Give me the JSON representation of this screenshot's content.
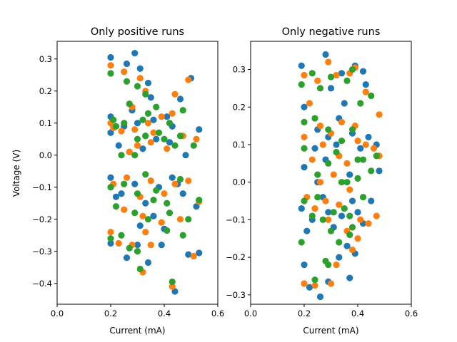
{
  "chart_data": [
    {
      "type": "scatter",
      "title": "Only positive runs",
      "xlabel": "Current (mA)",
      "ylabel": "Voltage (V)",
      "xlim": [
        0,
        0.6
      ],
      "ylim": [
        -0.465,
        0.355
      ],
      "xticks": [
        "0.0",
        "0.2",
        "0.4",
        "0.6"
      ],
      "xtick_values": [
        0,
        0.2,
        0.4,
        0.6
      ],
      "yticks": [
        "−0.4",
        "−0.3",
        "−0.2",
        "−0.1",
        "0.0",
        "0.1",
        "0.2",
        "0.3"
      ],
      "ytick_values": [
        -0.4,
        -0.3,
        -0.2,
        -0.1,
        0.0,
        0.1,
        0.2,
        0.3
      ],
      "grid": false,
      "series_colors": [
        "#1f77b4",
        "#ff7f0e",
        "#2ca02c"
      ],
      "series": [
        {
          "values": [
            [
              0.2,
              0.305
            ],
            [
              0.26,
              0.285
            ],
            [
              0.29,
              0.318
            ],
            [
              0.31,
              0.27
            ],
            [
              0.34,
              0.225
            ],
            [
              0.2,
              0.12
            ],
            [
              0.25,
              0.09
            ],
            [
              0.3,
              0.1
            ],
            [
              0.33,
              0.06
            ],
            [
              0.37,
              0.05
            ],
            [
              0.41,
              0.12
            ],
            [
              0.46,
              0.175
            ],
            [
              0.5,
              0.24
            ],
            [
              0.53,
              0.08
            ],
            [
              0.2,
              0.07
            ],
            [
              0.27,
              0.01
            ],
            [
              0.32,
              0.02
            ],
            [
              0.36,
              0.11
            ],
            [
              0.42,
              0.04
            ],
            [
              0.48,
              0.0
            ],
            [
              0.2,
              -0.07
            ],
            [
              0.24,
              -0.12
            ],
            [
              0.29,
              -0.09
            ],
            [
              0.33,
              -0.15
            ],
            [
              0.38,
              -0.1
            ],
            [
              0.43,
              -0.07
            ],
            [
              0.47,
              -0.12
            ],
            [
              0.52,
              -0.16
            ],
            [
              0.2,
              -0.275
            ],
            [
              0.26,
              -0.32
            ],
            [
              0.3,
              -0.28
            ],
            [
              0.34,
              -0.335
            ],
            [
              0.39,
              -0.28
            ],
            [
              0.44,
              -0.425
            ],
            [
              0.49,
              -0.31
            ],
            [
              0.22,
              -0.13
            ],
            [
              0.31,
              -0.22
            ],
            [
              0.36,
              -0.19
            ],
            [
              0.4,
              -0.23
            ],
            [
              0.45,
              -0.09
            ],
            [
              0.53,
              -0.305
            ],
            [
              0.23,
              0.03
            ],
            [
              0.28,
              0.14
            ],
            [
              0.35,
              0.18
            ],
            [
              0.43,
              0.09
            ]
          ]
        },
        {
          "values": [
            [
              0.2,
              0.28
            ],
            [
              0.25,
              0.26
            ],
            [
              0.31,
              0.24
            ],
            [
              0.33,
              0.2
            ],
            [
              0.28,
              0.15
            ],
            [
              0.2,
              0.1
            ],
            [
              0.24,
              0.075
            ],
            [
              0.29,
              0.08
            ],
            [
              0.35,
              0.04
            ],
            [
              0.39,
              0.12
            ],
            [
              0.44,
              0.19
            ],
            [
              0.49,
              0.235
            ],
            [
              0.52,
              0.05
            ],
            [
              0.21,
              0.085
            ],
            [
              0.3,
              0.03
            ],
            [
              0.34,
              0.1
            ],
            [
              0.41,
              0.02
            ],
            [
              0.47,
              0.06
            ],
            [
              0.21,
              -0.09
            ],
            [
              0.26,
              -0.07
            ],
            [
              0.31,
              -0.13
            ],
            [
              0.35,
              -0.08
            ],
            [
              0.4,
              -0.12
            ],
            [
              0.44,
              -0.09
            ],
            [
              0.49,
              -0.08
            ],
            [
              0.53,
              -0.145
            ],
            [
              0.2,
              -0.24
            ],
            [
              0.23,
              -0.275
            ],
            [
              0.28,
              -0.28
            ],
            [
              0.33,
              -0.24
            ],
            [
              0.35,
              -0.28
            ],
            [
              0.43,
              -0.41
            ],
            [
              0.51,
              -0.315
            ],
            [
              0.25,
              -0.17
            ],
            [
              0.32,
              -0.19
            ],
            [
              0.39,
              -0.21
            ],
            [
              0.46,
              -0.2
            ],
            [
              0.32,
              -0.365
            ],
            [
              0.27,
              0.01
            ],
            [
              0.36,
              0.07
            ],
            [
              0.43,
              0.13
            ]
          ]
        },
        {
          "values": [
            [
              0.2,
              0.255
            ],
            [
              0.26,
              0.23
            ],
            [
              0.3,
              0.215
            ],
            [
              0.33,
              0.19
            ],
            [
              0.27,
              0.16
            ],
            [
              0.21,
              0.11
            ],
            [
              0.25,
              0.1
            ],
            [
              0.3,
              0.05
            ],
            [
              0.34,
              0.13
            ],
            [
              0.38,
              0.07
            ],
            [
              0.42,
              0.1
            ],
            [
              0.47,
              0.14
            ],
            [
              0.51,
              0.03
            ],
            [
              0.22,
              0.09
            ],
            [
              0.29,
              0.0
            ],
            [
              0.33,
              0.06
            ],
            [
              0.4,
              0.05
            ],
            [
              0.46,
              0.06
            ],
            [
              0.2,
              -0.1
            ],
            [
              0.25,
              -0.09
            ],
            [
              0.3,
              -0.12
            ],
            [
              0.33,
              -0.06
            ],
            [
              0.37,
              -0.11
            ],
            [
              0.41,
              -0.15
            ],
            [
              0.46,
              -0.075
            ],
            [
              0.53,
              -0.14
            ],
            [
              0.2,
              -0.26
            ],
            [
              0.24,
              -0.25
            ],
            [
              0.27,
              -0.29
            ],
            [
              0.3,
              -0.3
            ],
            [
              0.34,
              -0.2
            ],
            [
              0.41,
              -0.235
            ],
            [
              0.43,
              -0.395
            ],
            [
              0.47,
              -0.25
            ],
            [
              0.22,
              -0.16
            ],
            [
              0.29,
              -0.18
            ],
            [
              0.36,
              -0.14
            ],
            [
              0.42,
              -0.18
            ],
            [
              0.49,
              -0.2
            ],
            [
              0.31,
              -0.355
            ],
            [
              0.24,
              0.0
            ],
            [
              0.32,
              0.11
            ],
            [
              0.37,
              0.15
            ],
            [
              0.44,
              0.03
            ]
          ]
        }
      ]
    },
    {
      "type": "scatter",
      "title": "Only negative runs",
      "xlabel": "Current (mA)",
      "ylabel": "",
      "xlim": [
        0,
        0.6
      ],
      "ylim": [
        -0.325,
        0.375
      ],
      "xticks": [
        "0.0",
        "0.2",
        "0.4",
        "0.6"
      ],
      "xtick_values": [
        0,
        0.2,
        0.4,
        0.6
      ],
      "yticks": [
        "−0.3",
        "−0.2",
        "−0.1",
        "0.0",
        "0.1",
        "0.2",
        "0.3"
      ],
      "ytick_values": [
        -0.3,
        -0.2,
        -0.1,
        0.0,
        0.1,
        0.2,
        0.3
      ],
      "grid": false,
      "series_colors": [
        "#1f77b4",
        "#ff7f0e",
        "#2ca02c"
      ],
      "series": [
        {
          "values": [
            [
              0.19,
              0.31
            ],
            [
              0.28,
              0.34
            ],
            [
              0.34,
              0.29
            ],
            [
              0.39,
              0.31
            ],
            [
              0.42,
              0.295
            ],
            [
              0.2,
              0.2
            ],
            [
              0.25,
              0.14
            ],
            [
              0.29,
              0.12
            ],
            [
              0.33,
              0.17
            ],
            [
              0.38,
              0.13
            ],
            [
              0.44,
              0.12
            ],
            [
              0.47,
              0.1
            ],
            [
              0.2,
              0.04
            ],
            [
              0.24,
              0.09
            ],
            [
              0.28,
              0.06
            ],
            [
              0.32,
              0.1
            ],
            [
              0.37,
              0.02
            ],
            [
              0.41,
              0.09
            ],
            [
              0.48,
              0.03
            ],
            [
              0.19,
              -0.07
            ],
            [
              0.23,
              -0.1
            ],
            [
              0.27,
              -0.04
            ],
            [
              0.31,
              -0.12
            ],
            [
              0.34,
              -0.09
            ],
            [
              0.38,
              -0.05
            ],
            [
              0.42,
              -0.11
            ],
            [
              0.45,
              -0.05
            ],
            [
              0.2,
              -0.22
            ],
            [
              0.22,
              -0.28
            ],
            [
              0.26,
              -0.305
            ],
            [
              0.29,
              -0.265
            ],
            [
              0.33,
              -0.2
            ],
            [
              0.36,
              -0.17
            ],
            [
              0.39,
              -0.19
            ],
            [
              0.37,
              -0.255
            ],
            [
              0.21,
              -0.13
            ],
            [
              0.25,
              0.0
            ],
            [
              0.3,
              0.25
            ],
            [
              0.35,
              0.21
            ],
            [
              0.43,
              0.26
            ],
            [
              0.29,
              -0.08
            ],
            [
              0.4,
              -0.08
            ]
          ]
        },
        {
          "values": [
            [
              0.2,
              0.285
            ],
            [
              0.29,
              0.32
            ],
            [
              0.32,
              0.285
            ],
            [
              0.37,
              0.29
            ],
            [
              0.39,
              0.305
            ],
            [
              0.22,
              0.21
            ],
            [
              0.26,
              0.15
            ],
            [
              0.3,
              0.13
            ],
            [
              0.34,
              0.16
            ],
            [
              0.39,
              0.15
            ],
            [
              0.43,
              0.1
            ],
            [
              0.48,
              0.07
            ],
            [
              0.2,
              0.12
            ],
            [
              0.23,
              0.06
            ],
            [
              0.27,
              0.1
            ],
            [
              0.33,
              0.07
            ],
            [
              0.36,
              0.05
            ],
            [
              0.4,
              0.11
            ],
            [
              0.46,
              0.09
            ],
            [
              0.21,
              -0.04
            ],
            [
              0.24,
              -0.07
            ],
            [
              0.28,
              -0.05
            ],
            [
              0.33,
              -0.06
            ],
            [
              0.37,
              -0.02
            ],
            [
              0.41,
              -0.1
            ],
            [
              0.47,
              -0.09
            ],
            [
              0.2,
              -0.27
            ],
            [
              0.24,
              -0.275
            ],
            [
              0.3,
              -0.27
            ],
            [
              0.32,
              -0.22
            ],
            [
              0.38,
              -0.18
            ],
            [
              0.4,
              -0.15
            ],
            [
              0.26,
              0.0
            ],
            [
              0.29,
              -0.1
            ],
            [
              0.36,
              -0.13
            ],
            [
              0.44,
              -0.11
            ],
            [
              0.48,
              0.18
            ],
            [
              0.43,
              0.24
            ],
            [
              0.25,
              0.27
            ],
            [
              0.31,
              0.02
            ]
          ]
        },
        {
          "values": [
            [
              0.19,
              0.26
            ],
            [
              0.26,
              0.25
            ],
            [
              0.3,
              0.28
            ],
            [
              0.36,
              0.27
            ],
            [
              0.38,
              0.3
            ],
            [
              0.2,
              0.16
            ],
            [
              0.24,
              0.17
            ],
            [
              0.29,
              0.14
            ],
            [
              0.34,
              0.11
            ],
            [
              0.38,
              0.14
            ],
            [
              0.42,
              0.06
            ],
            [
              0.47,
              0.07
            ],
            [
              0.2,
              0.09
            ],
            [
              0.25,
              0.02
            ],
            [
              0.29,
              0.05
            ],
            [
              0.32,
              0.08
            ],
            [
              0.36,
              0.0
            ],
            [
              0.4,
              0.06
            ],
            [
              0.45,
              0.03
            ],
            [
              0.2,
              -0.05
            ],
            [
              0.23,
              -0.09
            ],
            [
              0.27,
              -0.1
            ],
            [
              0.31,
              -0.08
            ],
            [
              0.35,
              -0.07
            ],
            [
              0.38,
              -0.12
            ],
            [
              0.42,
              -0.04
            ],
            [
              0.19,
              -0.16
            ],
            [
              0.24,
              -0.26
            ],
            [
              0.28,
              -0.21
            ],
            [
              0.29,
              -0.22
            ],
            [
              0.33,
              -0.16
            ],
            [
              0.37,
              -0.14
            ],
            [
              0.25,
              -0.04
            ],
            [
              0.3,
              -0.13
            ],
            [
              0.37,
              -0.09
            ],
            [
              0.41,
              0.21
            ],
            [
              0.45,
              0.23
            ],
            [
              0.23,
              0.29
            ],
            [
              0.34,
              0.0
            ],
            [
              0.4,
              0.01
            ]
          ]
        }
      ]
    }
  ]
}
